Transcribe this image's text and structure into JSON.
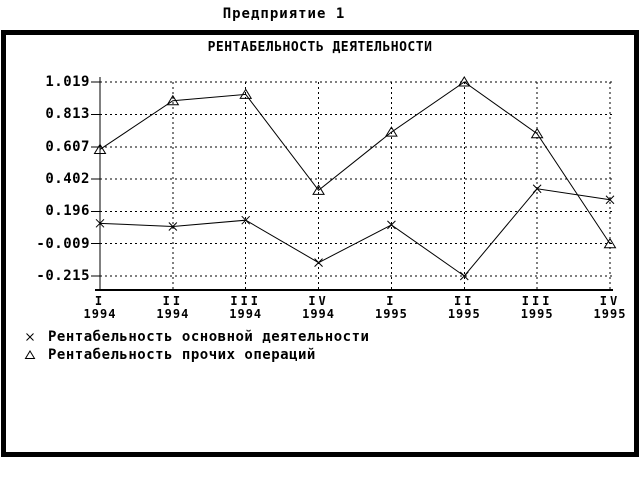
{
  "page_title": "Предприятие 1",
  "chart_data": {
    "type": "line",
    "title": "РЕНТАБЕЛЬНОСТЬ ДЕЯТЕЛЬНОСТИ",
    "y_tick_labels": [
      "1.019",
      "0.813",
      "0.607",
      "0.402",
      "0.196",
      "-0.009",
      "-0.215"
    ],
    "ylim": [
      -0.215,
      1.019
    ],
    "grid": true,
    "legend_position": "bottom-left",
    "colors": {
      "foreground": "#000000",
      "background": "#ffffff"
    },
    "categories": [
      {
        "quarter": "I",
        "year": "1994"
      },
      {
        "quarter": "II",
        "year": "1994"
      },
      {
        "quarter": "III",
        "year": "1994"
      },
      {
        "quarter": "IV",
        "year": "1994"
      },
      {
        "quarter": "I",
        "year": "1995"
      },
      {
        "quarter": "II",
        "year": "1995"
      },
      {
        "quarter": "III",
        "year": "1995"
      },
      {
        "quarter": "IV",
        "year": "1995"
      }
    ],
    "series": [
      {
        "name": "Рентабельность основной деятельности",
        "marker": "x",
        "values": [
          0.12,
          0.1,
          0.14,
          -0.13,
          0.11,
          -0.215,
          0.34,
          0.27
        ]
      },
      {
        "name": "Рентабельность прочих операций",
        "marker": "triangle",
        "values": [
          0.59,
          0.9,
          0.94,
          0.33,
          0.7,
          1.019,
          0.69,
          -0.01
        ]
      }
    ]
  }
}
